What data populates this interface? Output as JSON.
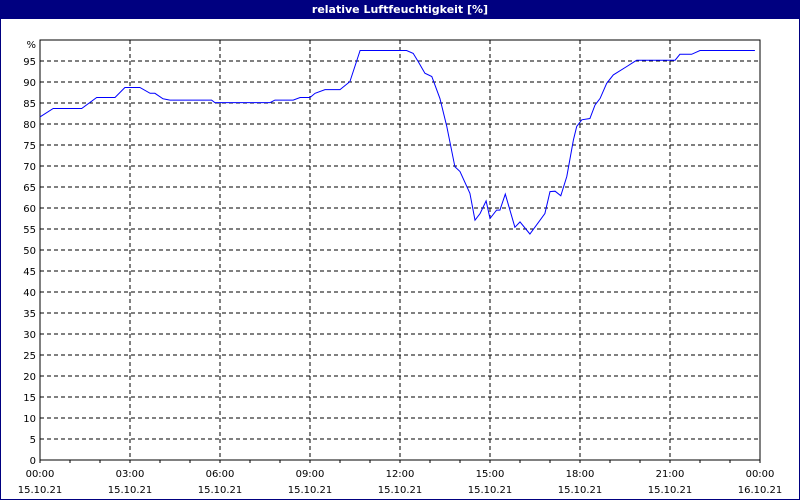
{
  "window": {
    "title": "relative Luftfeuchtigkeit [%]",
    "title_bg": "#000080"
  },
  "chart_data": {
    "type": "line",
    "title": "relative Luftfeuchtigkeit [%]",
    "y_unit_label": "%",
    "ylim": [
      0,
      100
    ],
    "y_ticks": [
      0,
      5,
      10,
      15,
      20,
      25,
      30,
      35,
      40,
      45,
      50,
      55,
      60,
      65,
      70,
      75,
      80,
      85,
      90,
      95
    ],
    "xlim_hours": [
      0,
      24
    ],
    "x_ticks": [
      {
        "time": "00:00",
        "date": "15.10.21"
      },
      {
        "time": "03:00",
        "date": "15.10.21"
      },
      {
        "time": "06:00",
        "date": "15.10.21"
      },
      {
        "time": "09:00",
        "date": "15.10.21"
      },
      {
        "time": "12:00",
        "date": "15.10.21"
      },
      {
        "time": "15:00",
        "date": "15.10.21"
      },
      {
        "time": "18:00",
        "date": "15.10.21"
      },
      {
        "time": "21:00",
        "date": "15.10.21"
      },
      {
        "time": "00:00",
        "date": "16.10.21"
      }
    ],
    "grid": true,
    "line_color": "#0000ff",
    "series": [
      {
        "x_hours": [
          0,
          0.44,
          1.39,
          1.89,
          2.5,
          2.83,
          3.33,
          3.67,
          3.83,
          4.1,
          4.33,
          5.72,
          5.83,
          7.67,
          7.83,
          8.44,
          8.67,
          9,
          9.17,
          9.5,
          10,
          10.33,
          10.67,
          12.22,
          12.44,
          12.61,
          12.83,
          13.06,
          13.33,
          13.56,
          13.83,
          14,
          14.33,
          14.5,
          14.67,
          14.87,
          15,
          15.22,
          15.33,
          15.51,
          15.83,
          16,
          16.33,
          16.83,
          17,
          17.17,
          17.36,
          17.56,
          17.78,
          17.89,
          18.06,
          18.33,
          18.5,
          18.67,
          18.89,
          19.11,
          19.56,
          19.89,
          21.17,
          21.33,
          21.72,
          22,
          23.83
        ],
        "values": [
          81.7,
          83.7,
          83.7,
          86.3,
          86.3,
          88.7,
          88.7,
          87.3,
          87.3,
          86.0,
          85.7,
          85.7,
          85.1,
          85.1,
          85.7,
          85.7,
          86.3,
          86.3,
          87.3,
          88.2,
          88.2,
          90.1,
          97.5,
          97.5,
          96.8,
          94.8,
          92.1,
          91.3,
          86.1,
          79.4,
          69.8,
          68.7,
          63.5,
          57.1,
          58.7,
          61.7,
          57.5,
          59.5,
          59.5,
          63.3,
          55.4,
          56.7,
          53.8,
          58.7,
          63.9,
          64.0,
          62.9,
          67.5,
          76.2,
          79.4,
          81.0,
          81.3,
          84.5,
          86.1,
          89.7,
          91.7,
          93.7,
          95.2,
          95.2,
          96.6,
          96.6,
          97.5,
          97.5
        ]
      }
    ]
  }
}
